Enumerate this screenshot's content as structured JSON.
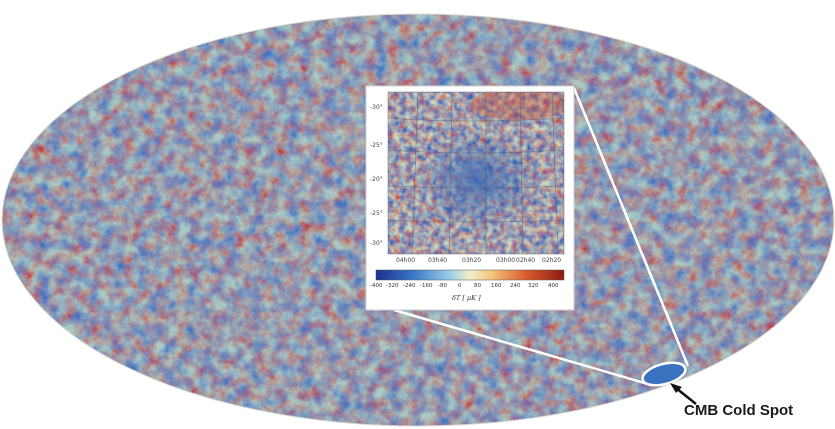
{
  "callout": {
    "label": "CMB Cold Spot"
  },
  "inset": {
    "y_ticks": [
      "-30°",
      "-25°",
      "-20°",
      "-25°",
      "-30°"
    ],
    "x_ticks": [
      "04h00",
      "03h40",
      "03h20",
      "03h00",
      "02h40",
      "02h20"
    ],
    "colorbar_ticks": [
      "-400",
      "-320",
      "-240",
      "-160",
      "-80",
      "0",
      "80",
      "160",
      "240",
      "320",
      "400"
    ],
    "colorbar_label": "δT [ μK ]"
  },
  "colors": {
    "cold": "#2f63b6",
    "cool": "#79b3d9",
    "neutral": "#e8dc9a",
    "warm": "#e88a45",
    "hot": "#b8391f"
  }
}
